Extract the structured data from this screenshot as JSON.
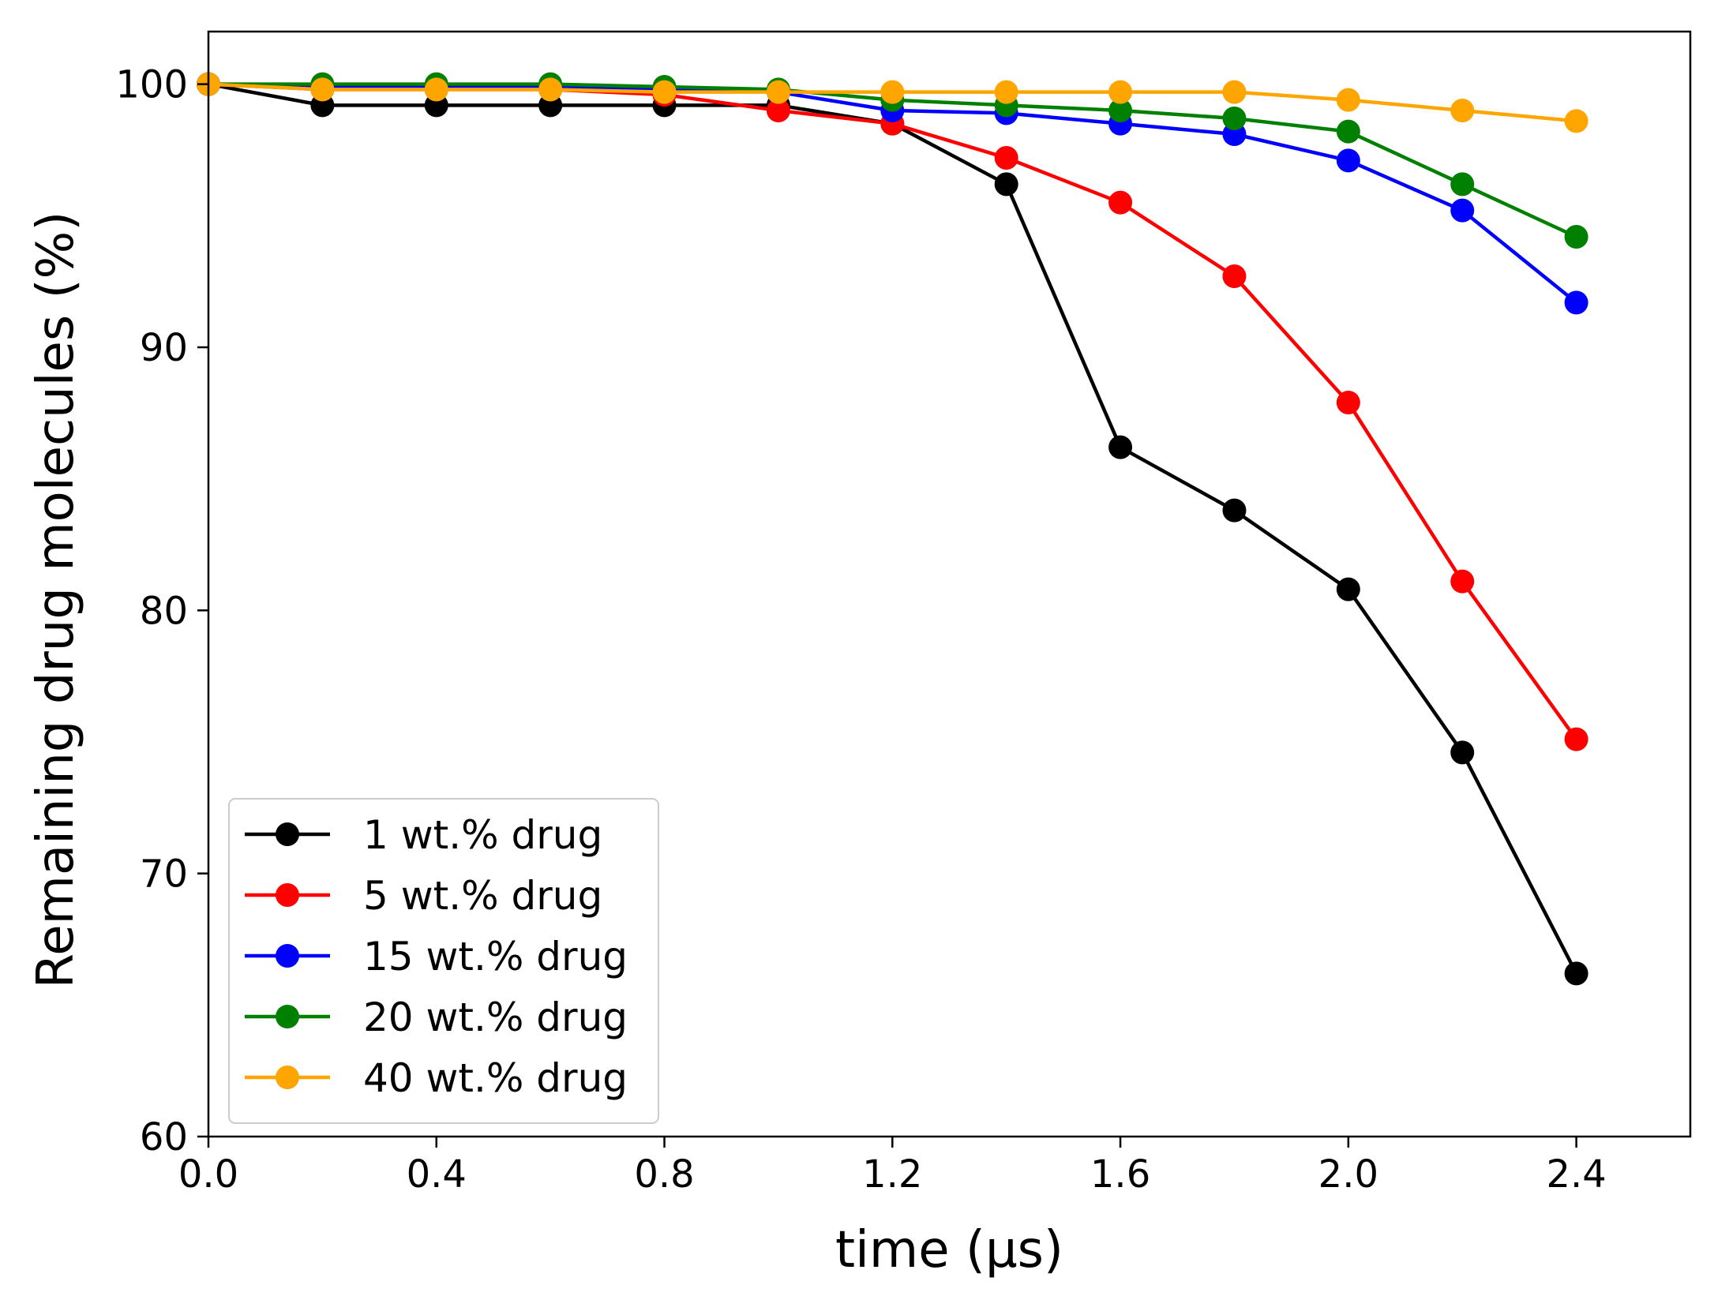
{
  "chart_data": {
    "type": "line",
    "title": "",
    "xlabel": "time (μs)",
    "ylabel": "Remaining drug molecules (%)",
    "xlim": [
      0.0,
      2.6
    ],
    "ylim": [
      60,
      102
    ],
    "xticks": [
      0.0,
      0.4,
      0.8,
      1.2,
      1.6,
      2.0,
      2.4
    ],
    "xtick_labels": [
      "0.0",
      "0.4",
      "0.8",
      "1.2",
      "1.6",
      "2.0",
      "2.4"
    ],
    "yticks": [
      60,
      70,
      80,
      90,
      100
    ],
    "ytick_labels": [
      "60",
      "70",
      "80",
      "90",
      "100"
    ],
    "grid": false,
    "legend_position": "bottom-left",
    "x": [
      0.0,
      0.2,
      0.4,
      0.6,
      0.8,
      1.0,
      1.2,
      1.4,
      1.6,
      1.8,
      2.0,
      2.2,
      2.4
    ],
    "series": [
      {
        "name": "1 wt.% drug",
        "color": "#000000",
        "values": [
          100,
          99.2,
          99.2,
          99.2,
          99.2,
          99.2,
          98.5,
          96.2,
          86.2,
          83.8,
          80.8,
          74.6,
          66.2
        ]
      },
      {
        "name": "5 wt.% drug",
        "color": "#ff0000",
        "values": [
          100,
          99.8,
          99.8,
          99.8,
          99.6,
          99.0,
          98.5,
          97.2,
          95.5,
          92.7,
          87.9,
          81.1,
          75.1
        ]
      },
      {
        "name": "15 wt.% drug",
        "color": "#0000ff",
        "values": [
          100,
          99.9,
          99.9,
          99.9,
          99.8,
          99.7,
          99.0,
          98.9,
          98.5,
          98.1,
          97.1,
          95.2,
          91.7
        ]
      },
      {
        "name": "20 wt.% drug",
        "color": "#008000",
        "values": [
          100,
          100,
          100,
          100,
          99.9,
          99.8,
          99.4,
          99.2,
          99.0,
          98.7,
          98.2,
          96.2,
          94.2
        ]
      },
      {
        "name": "40 wt.% drug",
        "color": "#ffa500",
        "values": [
          100,
          99.8,
          99.8,
          99.8,
          99.7,
          99.7,
          99.7,
          99.7,
          99.7,
          99.7,
          99.4,
          99.0,
          98.6
        ]
      }
    ]
  }
}
